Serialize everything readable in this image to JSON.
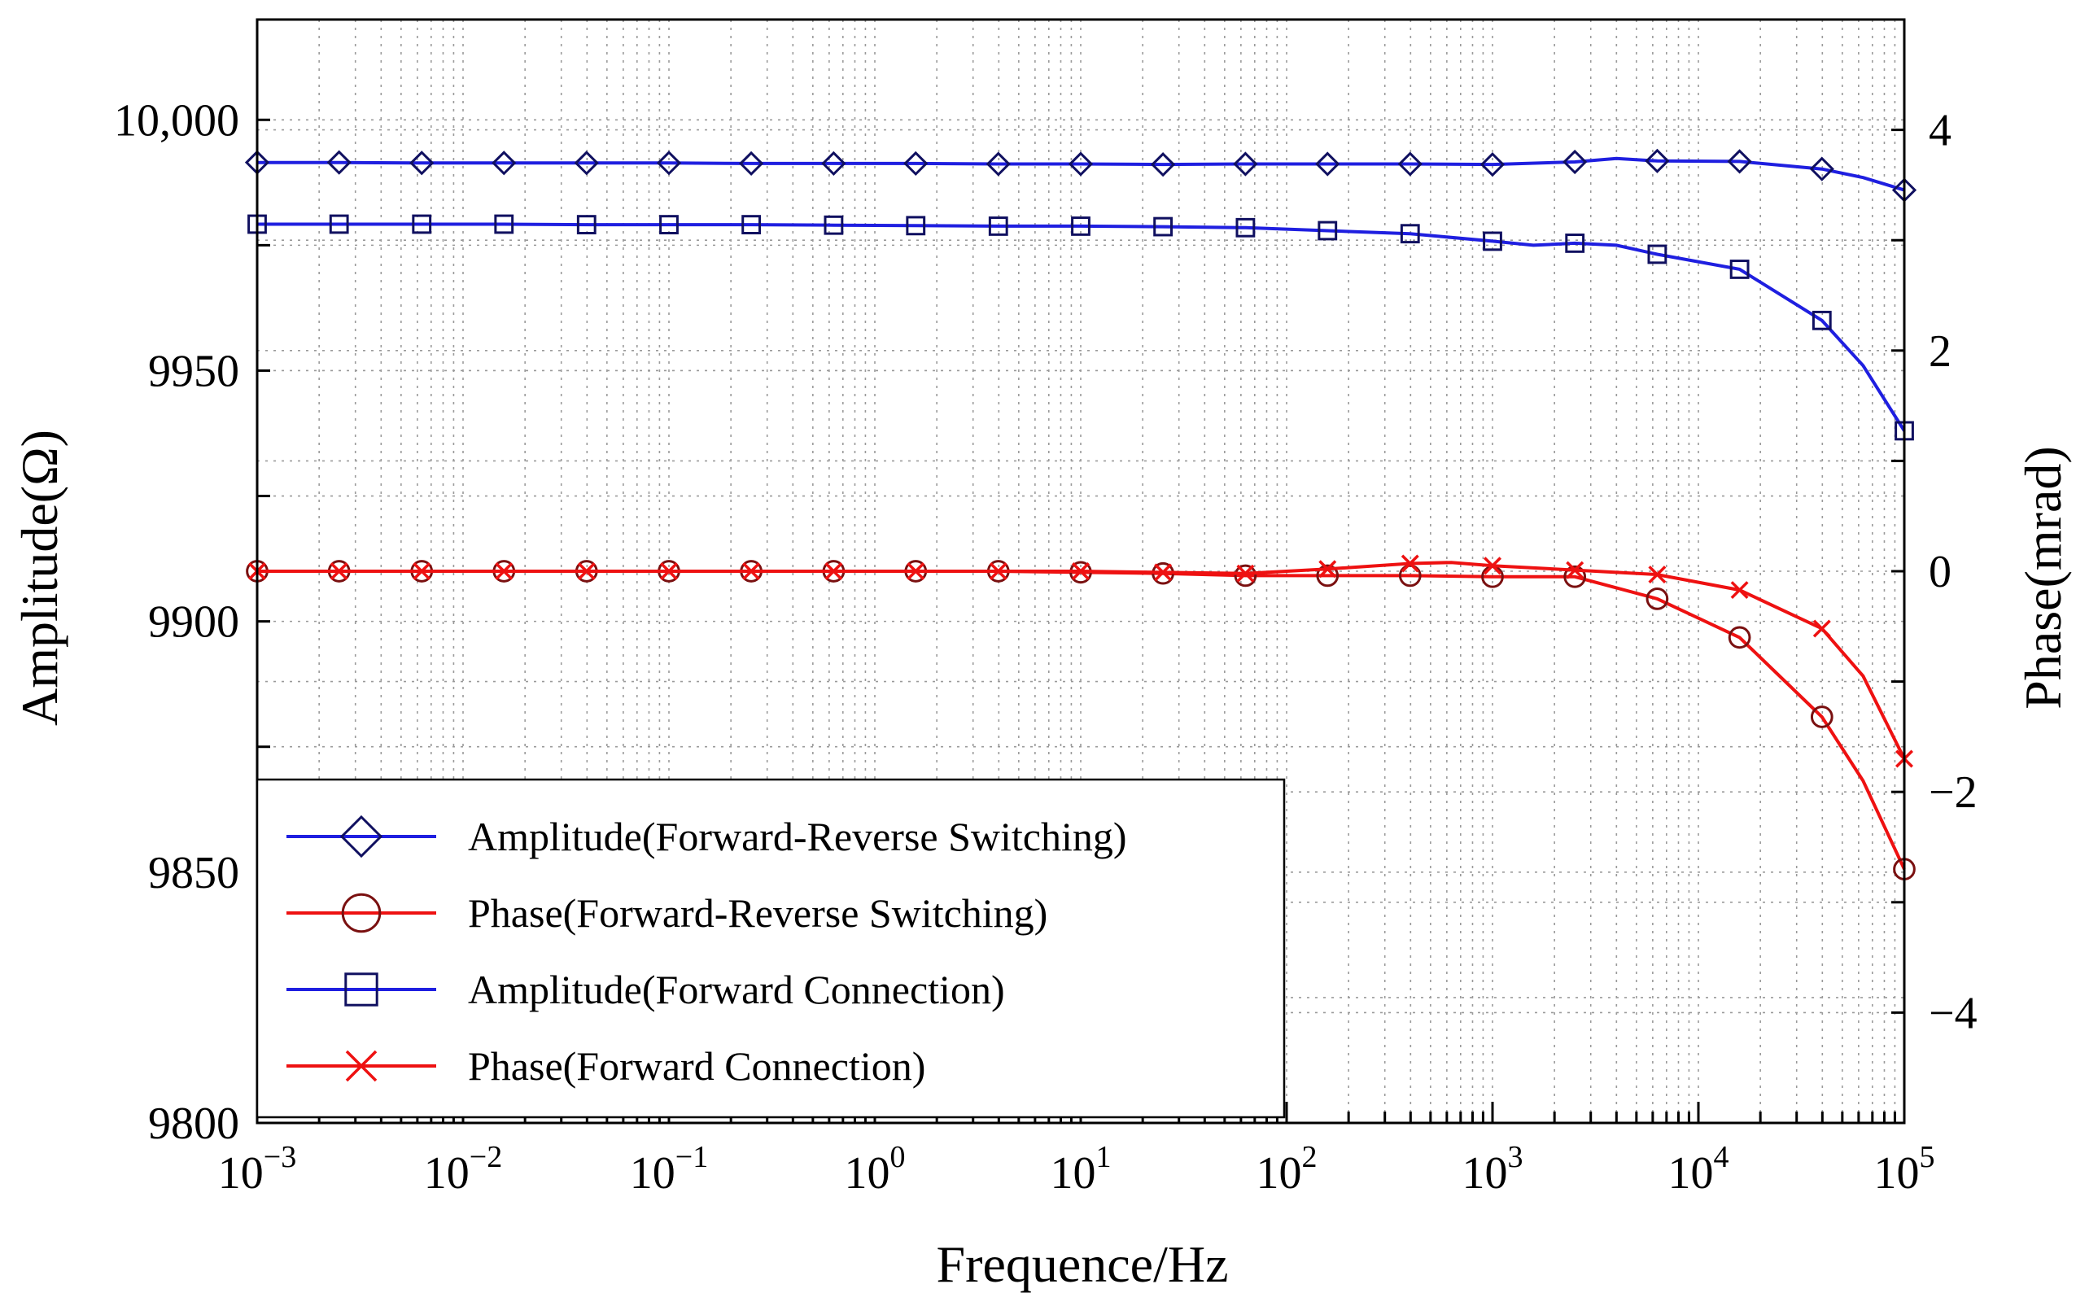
{
  "chart_data": {
    "type": "line",
    "xscale": "log",
    "xlabel": "Frequence/Hz",
    "ylabel": "Amplitude(Ω)",
    "y2label": "Phase(mrad)",
    "xlim": [
      0.001,
      100000
    ],
    "ylim": [
      9800,
      10020
    ],
    "y2lim": [
      -5,
      5
    ],
    "x_ticks": [
      {
        "base": "10",
        "exp": "−3",
        "value": 0.001
      },
      {
        "base": "10",
        "exp": "−2",
        "value": 0.01
      },
      {
        "base": "10",
        "exp": "−1",
        "value": 0.1
      },
      {
        "base": "10",
        "exp": "0",
        "value": 1
      },
      {
        "base": "10",
        "exp": "1",
        "value": 10
      },
      {
        "base": "10",
        "exp": "2",
        "value": 100
      },
      {
        "base": "10",
        "exp": "3",
        "value": 1000
      },
      {
        "base": "10",
        "exp": "4",
        "value": 10000
      },
      {
        "base": "10",
        "exp": "5",
        "value": 100000
      }
    ],
    "y_ticks": [
      {
        "label": "9800",
        "value": 9800
      },
      {
        "label": "9850",
        "value": 9850
      },
      {
        "label": "9900",
        "value": 9900
      },
      {
        "label": "9950",
        "value": 9950
      },
      {
        "label": "10,000",
        "value": 10000
      }
    ],
    "y2_ticks": [
      {
        "label": "−4",
        "value": -4
      },
      {
        "label": "−2",
        "value": -2
      },
      {
        "label": "0",
        "value": 0
      },
      {
        "label": "2",
        "value": 2
      },
      {
        "label": "4",
        "value": 4
      }
    ],
    "series": [
      {
        "name": "Amplitude(Forward-Reverse Switching)",
        "axis": "left",
        "color": "#1f1fe0",
        "marker_color": "#101060",
        "marker": "diamond",
        "x": [
          0.001,
          0.0025,
          0.0063,
          0.0158,
          0.0398,
          0.1,
          0.251,
          0.631,
          1.58,
          3.98,
          10,
          25.1,
          63.1,
          158,
          398,
          1000,
          2512,
          4000,
          6310,
          15850,
          39810,
          63100,
          100000
        ],
        "y": [
          9991.5,
          9991.5,
          9991.4,
          9991.4,
          9991.4,
          9991.4,
          9991.3,
          9991.3,
          9991.3,
          9991.2,
          9991.2,
          9991.1,
          9991.2,
          9991.2,
          9991.2,
          9991.1,
          9991.6,
          9992.3,
          9991.8,
          9991.7,
          9990.2,
          9988.5,
          9986
        ],
        "marker_x": [
          0.001,
          0.0025,
          0.0063,
          0.0158,
          0.0398,
          0.1,
          0.251,
          0.631,
          1.58,
          3.98,
          10,
          25.1,
          63.1,
          158,
          398,
          1000,
          2512,
          6310,
          15850,
          39810,
          100000
        ],
        "marker_y": [
          9991.5,
          9991.5,
          9991.4,
          9991.4,
          9991.4,
          9991.4,
          9991.3,
          9991.3,
          9991.3,
          9991.2,
          9991.2,
          9991.1,
          9991.2,
          9991.2,
          9991.2,
          9991.1,
          9991.6,
          9991.8,
          9991.7,
          9990.2,
          9986
        ]
      },
      {
        "name": "Phase(Forward-Reverse Switching)",
        "axis": "right",
        "color": "#ee1111",
        "marker_color": "#7a1010",
        "marker": "circle",
        "x": [
          0.001,
          0.0025,
          0.0063,
          0.0158,
          0.0398,
          0.1,
          0.251,
          0.631,
          1.58,
          3.98,
          10,
          25.1,
          63.1,
          158,
          398,
          1000,
          2512,
          6310,
          15850,
          39810,
          63100,
          100000
        ],
        "y": [
          0,
          0,
          0,
          0,
          0,
          0,
          0,
          0,
          0,
          0,
          -0.01,
          -0.02,
          -0.04,
          -0.04,
          -0.04,
          -0.05,
          -0.05,
          -0.25,
          -0.6,
          -1.32,
          -1.9,
          -2.7
        ],
        "marker_x": [
          0.001,
          0.0025,
          0.0063,
          0.0158,
          0.0398,
          0.1,
          0.251,
          0.631,
          1.58,
          3.98,
          10,
          25.1,
          63.1,
          158,
          398,
          1000,
          2512,
          6310,
          15850,
          39810,
          100000
        ],
        "marker_y": [
          0,
          0,
          0,
          0,
          0,
          0,
          0,
          0,
          0,
          0,
          -0.01,
          -0.02,
          -0.04,
          -0.04,
          -0.04,
          -0.05,
          -0.05,
          -0.25,
          -0.6,
          -1.32,
          -2.7
        ]
      },
      {
        "name": "Amplitude(Forward Connection)",
        "axis": "left",
        "color": "#1f1fe0",
        "marker_color": "#101060",
        "marker": "square",
        "x": [
          0.001,
          0.0025,
          0.0063,
          0.0158,
          0.0398,
          0.1,
          0.251,
          0.631,
          1.58,
          3.98,
          10,
          25.1,
          63.1,
          158,
          398,
          1000,
          1580,
          2512,
          4000,
          6310,
          15850,
          39810,
          63100,
          100000
        ],
        "y": [
          9979.2,
          9979.2,
          9979.2,
          9979.2,
          9979.1,
          9979.1,
          9979.1,
          9979.0,
          9978.9,
          9978.8,
          9978.8,
          9978.7,
          9978.5,
          9977.9,
          9977.3,
          9975.8,
          9975.0,
          9975.4,
          9975.0,
          9973.2,
          9970.2,
          9960,
          9951,
          9938
        ],
        "marker_x": [
          0.001,
          0.0025,
          0.0063,
          0.0158,
          0.0398,
          0.1,
          0.251,
          0.631,
          1.58,
          3.98,
          10,
          25.1,
          63.1,
          158,
          398,
          1000,
          2512,
          6310,
          15850,
          39810,
          100000
        ],
        "marker_y": [
          9979.2,
          9979.2,
          9979.2,
          9979.2,
          9979.1,
          9979.1,
          9979.1,
          9979.0,
          9978.9,
          9978.8,
          9978.8,
          9978.7,
          9978.5,
          9977.9,
          9977.3,
          9975.8,
          9975.4,
          9973.2,
          9970.2,
          9960,
          9938
        ]
      },
      {
        "name": "Phase(Forward Connection)",
        "axis": "right",
        "color": "#ee1111",
        "marker_color": "#ee1111",
        "marker": "x",
        "x": [
          0.001,
          0.0025,
          0.0063,
          0.0158,
          0.0398,
          0.1,
          0.251,
          0.631,
          1.58,
          3.98,
          10,
          25.1,
          63.1,
          158,
          398,
          631,
          1000,
          2512,
          6310,
          15850,
          39810,
          63100,
          100000
        ],
        "y": [
          0,
          0,
          0,
          0,
          0,
          0,
          0,
          0,
          0,
          0,
          0,
          -0.01,
          -0.02,
          0.02,
          0.07,
          0.08,
          0.05,
          0.01,
          -0.03,
          -0.17,
          -0.52,
          -0.95,
          -1.7
        ],
        "marker_x": [
          0.001,
          0.0025,
          0.0063,
          0.0158,
          0.0398,
          0.1,
          0.251,
          0.631,
          1.58,
          3.98,
          10,
          25.1,
          63.1,
          158,
          398,
          1000,
          2512,
          6310,
          15850,
          39810,
          100000
        ],
        "marker_y": [
          0,
          0,
          0,
          0,
          0,
          0,
          0,
          0,
          0,
          0,
          0,
          -0.01,
          -0.02,
          0.02,
          0.07,
          0.05,
          0.01,
          -0.03,
          -0.17,
          -0.52,
          -1.7
        ]
      }
    ],
    "legend": {
      "location": "lower-left",
      "entries": [
        "Amplitude(Forward-Reverse Switching)",
        "Phase(Forward-Reverse Switching)",
        "Amplitude(Forward Connection)",
        "Phase(Forward Connection)"
      ]
    },
    "grid": true
  }
}
